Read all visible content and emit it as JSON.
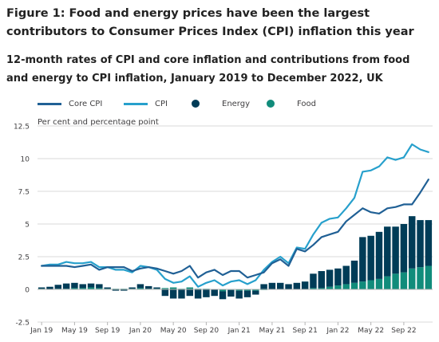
{
  "figure": {
    "title": "Figure 1: Food and energy prices have been the largest contributors to Consumer Prices Index (CPI) inflation this year",
    "subtitle": "12-month rates of CPI and core inflation and contributions from food and energy to CPI inflation, January 2019 to December 2022, UK"
  },
  "colors": {
    "core_cpi": "#206095",
    "cpi": "#27a0cc",
    "energy": "#003c57",
    "food": "#118c7b",
    "gridline": "#d9d9d9",
    "zero_line": "#b3b3b3",
    "text": "#414042"
  },
  "chart_data": {
    "type": "bar",
    "ylabel": "Per cent and percentage point",
    "ylim": [
      -2.5,
      12.5
    ],
    "yticks": [
      -2.5,
      0,
      2.5,
      5,
      7.5,
      10,
      12.5
    ],
    "ytick_labels": [
      "-2.5",
      "0",
      "2.5",
      "5",
      "7.5",
      "10",
      "12.5"
    ],
    "xtick_labels": [
      "Jan 19",
      "May 19",
      "Sep 19",
      "Jan 20",
      "May 20",
      "Sep 20",
      "Jan 21",
      "May 21",
      "Sep 21",
      "Jan 22",
      "May 22",
      "Sep 22"
    ],
    "xtick_index": [
      0,
      4,
      8,
      12,
      16,
      20,
      24,
      28,
      32,
      36,
      40,
      44
    ],
    "grid": true,
    "legend_position": "top",
    "x": [
      "Jan 2019",
      "Feb 2019",
      "Mar 2019",
      "Apr 2019",
      "May 2019",
      "Jun 2019",
      "Jul 2019",
      "Aug 2019",
      "Sep 2019",
      "Oct 2019",
      "Nov 2019",
      "Dec 2019",
      "Jan 2020",
      "Feb 2020",
      "Mar 2020",
      "Apr 2020",
      "May 2020",
      "Jun 2020",
      "Jul 2020",
      "Aug 2020",
      "Sep 2020",
      "Oct 2020",
      "Nov 2020",
      "Dec 2020",
      "Jan 2021",
      "Feb 2021",
      "Mar 2021",
      "Apr 2021",
      "May 2021",
      "Jun 2021",
      "Jul 2021",
      "Aug 2021",
      "Sep 2021",
      "Oct 2021",
      "Nov 2021",
      "Dec 2021",
      "Jan 2022",
      "Feb 2022",
      "Mar 2022",
      "Apr 2022",
      "May 2022",
      "Jun 2022",
      "Jul 2022",
      "Aug 2022",
      "Sep 2022",
      "Oct 2022",
      "Nov 2022",
      "Dec 2022"
    ],
    "series": [
      {
        "name": "Core CPI",
        "kind": "line",
        "values": [
          1.8,
          1.8,
          1.8,
          1.8,
          1.7,
          1.8,
          1.9,
          1.5,
          1.7,
          1.7,
          1.7,
          1.4,
          1.6,
          1.7,
          1.6,
          1.4,
          1.2,
          1.4,
          1.8,
          0.9,
          1.3,
          1.5,
          1.1,
          1.4,
          1.4,
          0.9,
          1.1,
          1.3,
          2.0,
          2.3,
          1.8,
          3.1,
          2.9,
          3.4,
          4.0,
          4.2,
          4.4,
          5.2,
          5.7,
          6.2,
          5.9,
          5.8,
          6.2,
          6.3,
          6.5,
          6.5,
          7.4,
          8.4
        ]
      },
      {
        "name": "CPI",
        "kind": "line",
        "values": [
          1.8,
          1.9,
          1.9,
          2.1,
          2.0,
          2.0,
          2.1,
          1.7,
          1.7,
          1.5,
          1.5,
          1.3,
          1.8,
          1.7,
          1.5,
          0.8,
          0.5,
          0.6,
          1.0,
          0.2,
          0.5,
          0.7,
          0.3,
          0.6,
          0.7,
          0.4,
          0.7,
          1.5,
          2.1,
          2.5,
          2.0,
          3.2,
          3.1,
          4.2,
          5.1,
          5.4,
          5.5,
          6.2,
          7.0,
          9.0,
          9.1,
          9.4,
          10.1,
          9.9,
          10.1,
          11.1,
          10.7,
          10.5
        ]
      },
      {
        "name": "Energy",
        "kind": "bar",
        "values": [
          0.1,
          0.2,
          0.3,
          0.4,
          0.4,
          0.3,
          0.3,
          0.3,
          0.1,
          -0.1,
          -0.1,
          0.1,
          0.3,
          0.2,
          0.1,
          -0.5,
          -0.7,
          -0.7,
          -0.5,
          -0.7,
          -0.6,
          -0.5,
          -0.6,
          -0.5,
          -0.6,
          -0.5,
          -0.3,
          0.4,
          0.5,
          0.5,
          0.4,
          0.5,
          0.6,
          1.1,
          1.3,
          1.3,
          1.3,
          1.4,
          1.7,
          3.4,
          3.4,
          3.6,
          3.8,
          3.6,
          3.7,
          4.0,
          3.6,
          3.5
        ]
      },
      {
        "name": "Food",
        "kind": "bar",
        "values": [
          0.05,
          0.0,
          0.05,
          0.05,
          0.1,
          0.1,
          0.15,
          0.1,
          0.05,
          0.05,
          0.05,
          0.05,
          0.1,
          0.05,
          0.05,
          0.1,
          0.15,
          0.05,
          0.15,
          0.05,
          0.05,
          0.0,
          -0.15,
          -0.05,
          -0.1,
          -0.1,
          -0.1,
          -0.05,
          0.0,
          0.0,
          0.0,
          0.0,
          0.0,
          0.1,
          0.1,
          0.2,
          0.3,
          0.4,
          0.5,
          0.6,
          0.7,
          0.8,
          1.0,
          1.2,
          1.3,
          1.6,
          1.7,
          1.8
        ]
      }
    ]
  }
}
